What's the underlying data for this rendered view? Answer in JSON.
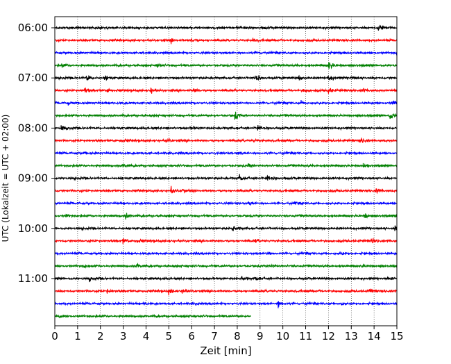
{
  "chart_data": {
    "type": "line",
    "title": "",
    "xlabel": "Zeit  [min]",
    "ylabel": "UTC (Lokalzeit = UTC + 02:00)",
    "xlim": [
      0,
      15
    ],
    "x_ticks": [
      0,
      1,
      2,
      3,
      4,
      5,
      6,
      7,
      8,
      9,
      10,
      11,
      12,
      13,
      14,
      15
    ],
    "y_ticks": [
      "06:00",
      "07:00",
      "08:00",
      "09:00",
      "10:00",
      "11:00"
    ],
    "y_tick_row_index": [
      0,
      4,
      8,
      12,
      16,
      20
    ],
    "grid": "vertical dotted at each minute",
    "row_interval_minutes": 15,
    "row_start_times": [
      "06:00",
      "06:15",
      "06:30",
      "06:45",
      "07:00",
      "07:15",
      "07:30",
      "07:45",
      "08:00",
      "08:15",
      "08:30",
      "08:45",
      "09:00",
      "09:15",
      "09:30",
      "09:45",
      "10:00",
      "10:15",
      "10:30",
      "10:45",
      "11:00",
      "11:15",
      "11:30",
      "11:45"
    ],
    "color_cycle": [
      "#000000",
      "#ff0000",
      "#0000ff",
      "#008000"
    ],
    "rows": [
      {
        "start": "06:00",
        "events": [
          [
            9.1,
            0.35
          ],
          [
            14.2,
            0.9
          ]
        ]
      },
      {
        "start": "06:15",
        "events": [
          [
            5.1,
            0.4
          ],
          [
            6.0,
            0.35
          ],
          [
            8.7,
            0.25
          ]
        ]
      },
      {
        "start": "06:30",
        "events": [
          [
            8.8,
            0.2
          ],
          [
            15.0,
            1.0
          ]
        ]
      },
      {
        "start": "06:45",
        "events": [
          [
            0.3,
            0.35
          ],
          [
            4.5,
            0.4
          ],
          [
            12.0,
            0.9
          ]
        ]
      },
      {
        "start": "07:00",
        "events": [
          [
            1.4,
            0.6
          ],
          [
            2.2,
            0.4
          ],
          [
            8.8,
            0.7
          ],
          [
            10.7,
            0.4
          ],
          [
            12.0,
            0.9
          ],
          [
            13.0,
            0.45
          ]
        ]
      },
      {
        "start": "07:15",
        "events": [
          [
            1.3,
            0.6
          ],
          [
            2.3,
            0.4
          ],
          [
            4.2,
            0.6
          ],
          [
            6.1,
            0.5
          ],
          [
            10.9,
            0.35
          ],
          [
            12.0,
            0.8
          ],
          [
            13.5,
            0.45
          ]
        ]
      },
      {
        "start": "07:30",
        "events": [
          [
            0.6,
            0.35
          ],
          [
            10.8,
            0.3
          ],
          [
            14.8,
            0.7
          ]
        ]
      },
      {
        "start": "07:45",
        "events": [
          [
            7.9,
            0.9
          ],
          [
            14.7,
            1.0
          ]
        ]
      },
      {
        "start": "08:00",
        "events": [
          [
            0.3,
            0.6
          ],
          [
            6.0,
            0.3
          ],
          [
            8.9,
            0.7
          ]
        ]
      },
      {
        "start": "08:15",
        "events": [
          [
            2.9,
            0.45
          ],
          [
            4.9,
            0.45
          ],
          [
            8.7,
            0.3
          ],
          [
            13.4,
            0.6
          ]
        ]
      },
      {
        "start": "08:30",
        "events": [
          [
            1.3,
            0.2
          ],
          [
            8.0,
            0.25
          ]
        ]
      },
      {
        "start": "08:45",
        "events": [
          [
            3.0,
            0.6
          ],
          [
            8.5,
            0.4
          ],
          [
            13.5,
            0.4
          ]
        ]
      },
      {
        "start": "09:00",
        "events": [
          [
            8.1,
            0.6
          ],
          [
            9.3,
            0.8
          ],
          [
            10.1,
            0.3
          ]
        ]
      },
      {
        "start": "09:15",
        "events": [
          [
            5.1,
            0.7
          ],
          [
            5.6,
            0.45
          ],
          [
            14.1,
            0.5
          ]
        ]
      },
      {
        "start": "09:30",
        "events": [
          [
            8.5,
            0.3
          ],
          [
            10.5,
            0.2
          ]
        ]
      },
      {
        "start": "09:45",
        "events": [
          [
            0.5,
            0.35
          ],
          [
            3.1,
            0.6
          ],
          [
            13.6,
            0.4
          ]
        ]
      },
      {
        "start": "10:00",
        "events": [
          [
            7.8,
            0.6
          ],
          [
            14.9,
            0.35
          ]
        ]
      },
      {
        "start": "10:15",
        "events": [
          [
            3.0,
            0.6
          ],
          [
            3.6,
            0.4
          ],
          [
            8.8,
            0.3
          ],
          [
            13.9,
            0.6
          ]
        ]
      },
      {
        "start": "10:30",
        "events": [
          [
            9.3,
            0.35
          ],
          [
            12.5,
            0.25
          ]
        ]
      },
      {
        "start": "10:45",
        "events": [
          [
            1.3,
            0.3
          ],
          [
            3.6,
            0.5
          ],
          [
            9.5,
            0.3
          ],
          [
            13.5,
            0.25
          ]
        ]
      },
      {
        "start": "11:00",
        "events": [
          [
            1.5,
            0.4
          ],
          [
            8.2,
            0.45
          ],
          [
            8.8,
            0.4
          ],
          [
            14.6,
            0.3
          ]
        ]
      },
      {
        "start": "11:15",
        "events": [
          [
            2.3,
            0.3
          ],
          [
            5.0,
            0.7
          ],
          [
            5.6,
            0.45
          ],
          [
            13.8,
            0.5
          ]
        ]
      },
      {
        "start": "11:30",
        "events": [
          [
            3.9,
            0.3
          ],
          [
            6.2,
            0.25
          ],
          [
            9.8,
            0.8
          ],
          [
            12.5,
            0.3
          ]
        ]
      },
      {
        "start": "11:45",
        "events": [
          [
            0.2,
            0.3
          ]
        ],
        "end_minute": 8.6
      }
    ]
  }
}
